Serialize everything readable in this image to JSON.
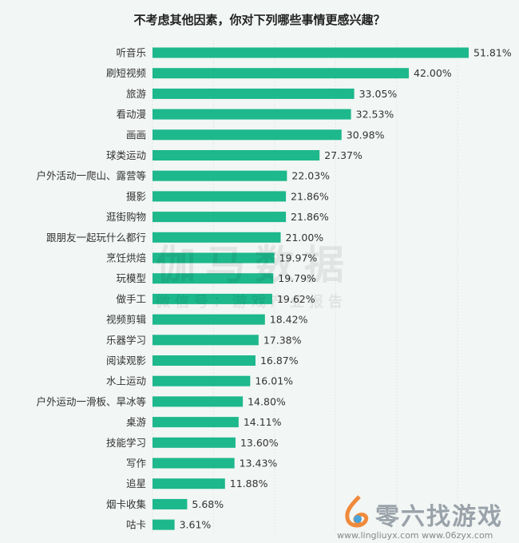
{
  "chart_data": {
    "type": "bar",
    "orientation": "horizontal",
    "title": "不考虑其他因素，你对下列哪些事情更感兴趣？",
    "categories": [
      "听音乐",
      "刷短视频",
      "旅游",
      "看动漫",
      "画画",
      "球类运动",
      "户外活动一爬山、露营等",
      "摄影",
      "逛街购物",
      "跟朋友一起玩什么都行",
      "烹饪烘焙",
      "玩模型",
      "做手工",
      "视频剪辑",
      "乐器学习",
      "阅读观影",
      "水上运动",
      "户外运动一滑板、旱冰等",
      "桌游",
      "技能学习",
      "写作",
      "追星",
      "烟卡收集",
      "咕卡"
    ],
    "values": [
      51.81,
      42.0,
      33.05,
      32.53,
      30.98,
      27.37,
      22.03,
      21.86,
      21.86,
      21.0,
      19.97,
      19.79,
      19.62,
      18.42,
      17.38,
      16.87,
      16.01,
      14.8,
      14.11,
      13.6,
      13.43,
      11.88,
      5.68,
      3.61
    ],
    "labels": [
      "51.81%",
      "42.00%",
      "33.05%",
      "32.53%",
      "30.98%",
      "27.37%",
      "22.03%",
      "21.86%",
      "21.86%",
      "21.00%",
      "19.97%",
      "19.79%",
      "19.62%",
      "18.42%",
      "17.38%",
      "16.87%",
      "16.01%",
      "14.80%",
      "14.11%",
      "13.60%",
      "13.43%",
      "11.88%",
      "5.68%",
      "3.61%"
    ],
    "xlim": [
      0,
      52
    ],
    "grid": true,
    "bar_color": "#1db88c"
  },
  "watermark": {
    "main": "伽马数据",
    "sub": "微信号：游戏产业报告"
  },
  "logo": {
    "name": "零六找游戏",
    "urls": "www.lingliuyx.com   www.06zyx.com"
  }
}
